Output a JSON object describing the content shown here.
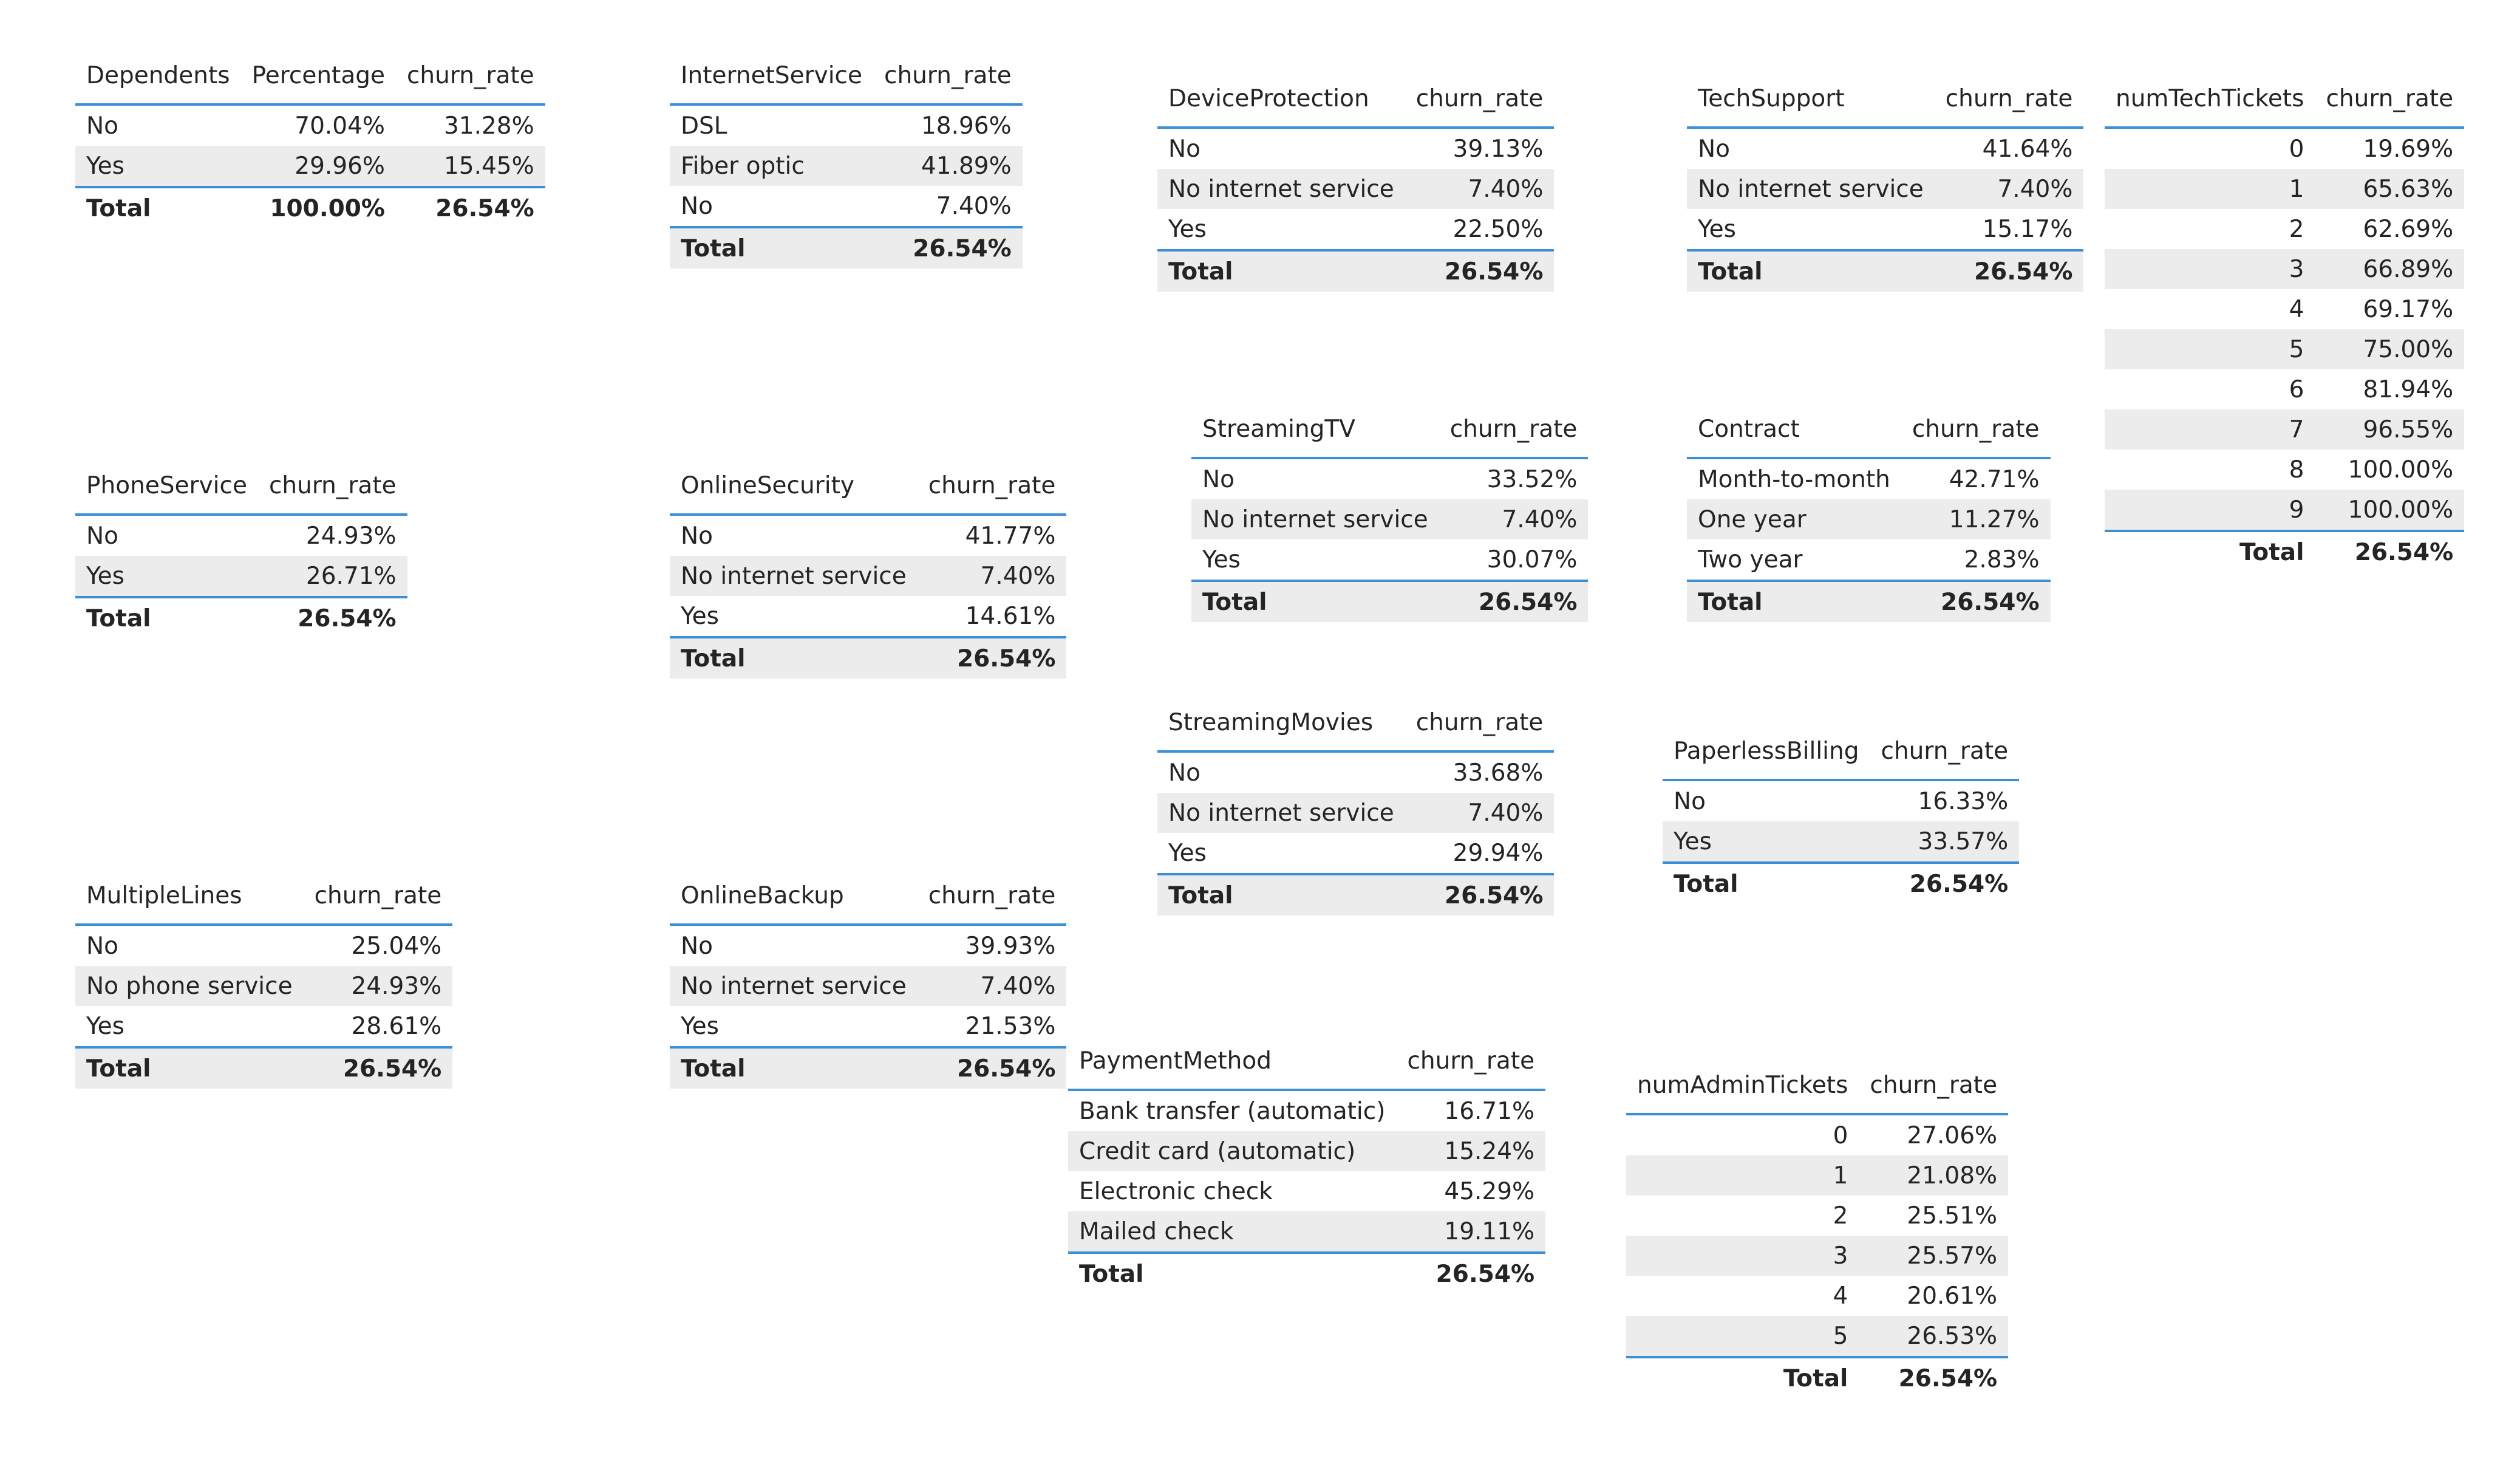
{
  "tables": {
    "dependents": {
      "headers": [
        "Dependents",
        "Percentage",
        "churn_rate"
      ],
      "rows": [
        [
          "No",
          "70.04%",
          "31.28%"
        ],
        [
          "Yes",
          "29.96%",
          "15.45%"
        ]
      ],
      "total": [
        "Total",
        "100.00%",
        "26.54%"
      ]
    },
    "phone_service": {
      "headers": [
        "PhoneService",
        "churn_rate"
      ],
      "rows": [
        [
          "No",
          "24.93%"
        ],
        [
          "Yes",
          "26.71%"
        ]
      ],
      "total": [
        "Total",
        "26.54%"
      ]
    },
    "multiple_lines": {
      "headers": [
        "MultipleLines",
        "churn_rate"
      ],
      "rows": [
        [
          "No",
          "25.04%"
        ],
        [
          "No phone service",
          "24.93%"
        ],
        [
          "Yes",
          "28.61%"
        ]
      ],
      "total": [
        "Total",
        "26.54%"
      ]
    },
    "internet_service": {
      "headers": [
        "InternetService",
        "churn_rate"
      ],
      "rows": [
        [
          "DSL",
          "18.96%"
        ],
        [
          "Fiber optic",
          "41.89%"
        ],
        [
          "No",
          "7.40%"
        ]
      ],
      "total": [
        "Total",
        "26.54%"
      ]
    },
    "online_security": {
      "headers": [
        "OnlineSecurity",
        "churn_rate"
      ],
      "rows": [
        [
          "No",
          "41.77%"
        ],
        [
          "No internet service",
          "7.40%"
        ],
        [
          "Yes",
          "14.61%"
        ]
      ],
      "total": [
        "Total",
        "26.54%"
      ]
    },
    "online_backup": {
      "headers": [
        "OnlineBackup",
        "churn_rate"
      ],
      "rows": [
        [
          "No",
          "39.93%"
        ],
        [
          "No internet service",
          "7.40%"
        ],
        [
          "Yes",
          "21.53%"
        ]
      ],
      "total": [
        "Total",
        "26.54%"
      ]
    },
    "device_protection": {
      "headers": [
        "DeviceProtection",
        "churn_rate"
      ],
      "rows": [
        [
          "No",
          "39.13%"
        ],
        [
          "No internet service",
          "7.40%"
        ],
        [
          "Yes",
          "22.50%"
        ]
      ],
      "total": [
        "Total",
        "26.54%"
      ]
    },
    "streaming_tv": {
      "headers": [
        "StreamingTV",
        "churn_rate"
      ],
      "rows": [
        [
          "No",
          "33.52%"
        ],
        [
          "No internet service",
          "7.40%"
        ],
        [
          "Yes",
          "30.07%"
        ]
      ],
      "total": [
        "Total",
        "26.54%"
      ]
    },
    "streaming_movies": {
      "headers": [
        "StreamingMovies",
        "churn_rate"
      ],
      "rows": [
        [
          "No",
          "33.68%"
        ],
        [
          "No internet service",
          "7.40%"
        ],
        [
          "Yes",
          "29.94%"
        ]
      ],
      "total": [
        "Total",
        "26.54%"
      ]
    },
    "payment_method": {
      "headers": [
        "PaymentMethod",
        "churn_rate"
      ],
      "rows": [
        [
          "Bank transfer (automatic)",
          "16.71%"
        ],
        [
          "Credit card (automatic)",
          "15.24%"
        ],
        [
          "Electronic check",
          "45.29%"
        ],
        [
          "Mailed check",
          "19.11%"
        ]
      ],
      "total": [
        "Total",
        "26.54%"
      ]
    },
    "tech_support": {
      "headers": [
        "TechSupport",
        "churn_rate"
      ],
      "rows": [
        [
          "No",
          "41.64%"
        ],
        [
          "No internet service",
          "7.40%"
        ],
        [
          "Yes",
          "15.17%"
        ]
      ],
      "total": [
        "Total",
        "26.54%"
      ]
    },
    "contract": {
      "headers": [
        "Contract",
        "churn_rate"
      ],
      "rows": [
        [
          "Month-to-month",
          "42.71%"
        ],
        [
          "One year",
          "11.27%"
        ],
        [
          "Two year",
          "2.83%"
        ]
      ],
      "total": [
        "Total",
        "26.54%"
      ]
    },
    "paperless_billing": {
      "headers": [
        "PaperlessBilling",
        "churn_rate"
      ],
      "rows": [
        [
          "No",
          "16.33%"
        ],
        [
          "Yes",
          "33.57%"
        ]
      ],
      "total": [
        "Total",
        "26.54%"
      ]
    },
    "num_admin_tickets": {
      "headers": [
        "numAdminTickets",
        "churn_rate"
      ],
      "rows": [
        [
          "0",
          "27.06%"
        ],
        [
          "1",
          "21.08%"
        ],
        [
          "2",
          "25.51%"
        ],
        [
          "3",
          "25.57%"
        ],
        [
          "4",
          "20.61%"
        ],
        [
          "5",
          "26.53%"
        ]
      ],
      "total": [
        "Total",
        "26.54%"
      ]
    },
    "num_tech_tickets": {
      "headers": [
        "numTechTickets",
        "churn_rate"
      ],
      "rows": [
        [
          "0",
          "19.69%"
        ],
        [
          "1",
          "65.63%"
        ],
        [
          "2",
          "62.69%"
        ],
        [
          "3",
          "66.89%"
        ],
        [
          "4",
          "69.17%"
        ],
        [
          "5",
          "75.00%"
        ],
        [
          "6",
          "81.94%"
        ],
        [
          "7",
          "96.55%"
        ],
        [
          "8",
          "100.00%"
        ],
        [
          "9",
          "100.00%"
        ]
      ],
      "total": [
        "Total",
        "26.54%"
      ]
    }
  }
}
